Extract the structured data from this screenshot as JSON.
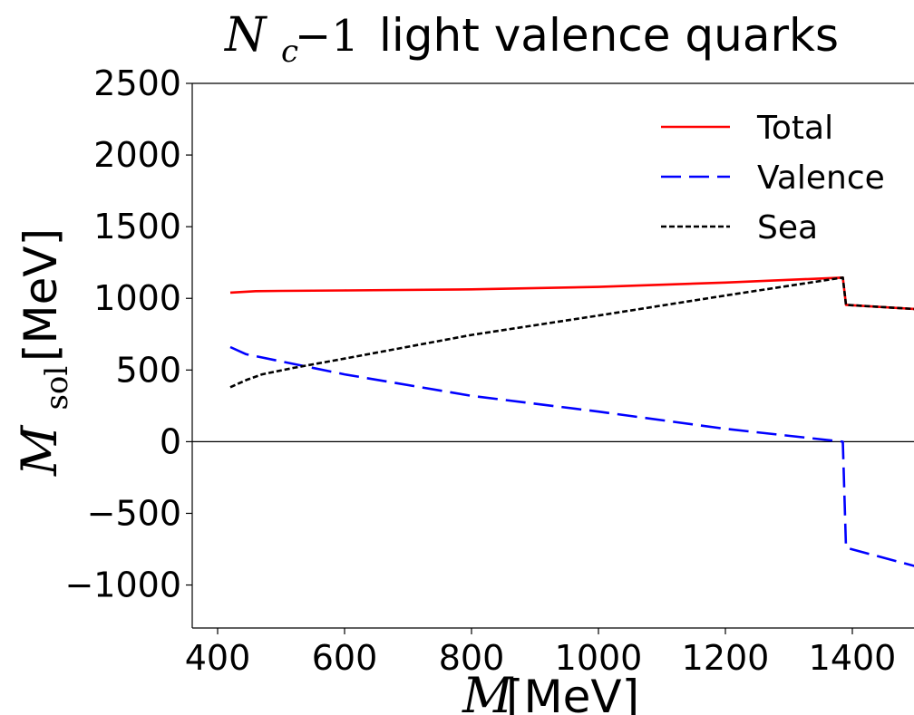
{
  "chart_data": {
    "type": "line",
    "title": {
      "math_symbol": "N",
      "math_subscript": "c",
      "math_expr": "−1",
      "text": "light valence quarks"
    },
    "xlabel": {
      "math_symbol": "M",
      "unit": "[MeV]"
    },
    "ylabel": {
      "math_symbol": "M",
      "math_subscript": "sol",
      "unit": "[MeV]"
    },
    "xlim": [
      350,
      1500
    ],
    "ylim": [
      -1300,
      2500
    ],
    "xticks": [
      400,
      600,
      800,
      1000,
      1200,
      1400
    ],
    "xtick_labels": [
      "400",
      "600",
      "800",
      "1000",
      "1200",
      "1400"
    ],
    "yticks": [
      -1000,
      -500,
      0,
      500,
      1000,
      1500,
      2000,
      2500
    ],
    "ytick_labels": [
      "−1000",
      "−500",
      "0",
      "500",
      "1000",
      "1500",
      "2000",
      "2500"
    ],
    "grid": false,
    "zero_line": true,
    "legend_position": "top-right",
    "series": [
      {
        "name": "Total",
        "color": "#ff0000",
        "dash": "solid",
        "x": [
          420,
          460,
          500,
          600,
          800,
          1000,
          1200,
          1385,
          1390,
          1500
        ],
        "y": [
          1040,
          1050,
          1052,
          1055,
          1063,
          1080,
          1110,
          1145,
          955,
          925
        ]
      },
      {
        "name": "Valence",
        "color": "#0000ff",
        "dash": "long-dash",
        "x": [
          420,
          445,
          500,
          600,
          800,
          1000,
          1200,
          1385,
          1390,
          1500
        ],
        "y": [
          660,
          610,
          560,
          470,
          320,
          210,
          90,
          0,
          -740,
          -870
        ]
      },
      {
        "name": "Sea",
        "color": "#000000",
        "dash": "short-dash",
        "x": [
          420,
          445,
          470,
          520,
          600,
          800,
          1000,
          1200,
          1385,
          1390,
          1500
        ],
        "y": [
          380,
          430,
          470,
          515,
          580,
          745,
          880,
          1020,
          1145,
          955,
          925
        ]
      }
    ]
  }
}
